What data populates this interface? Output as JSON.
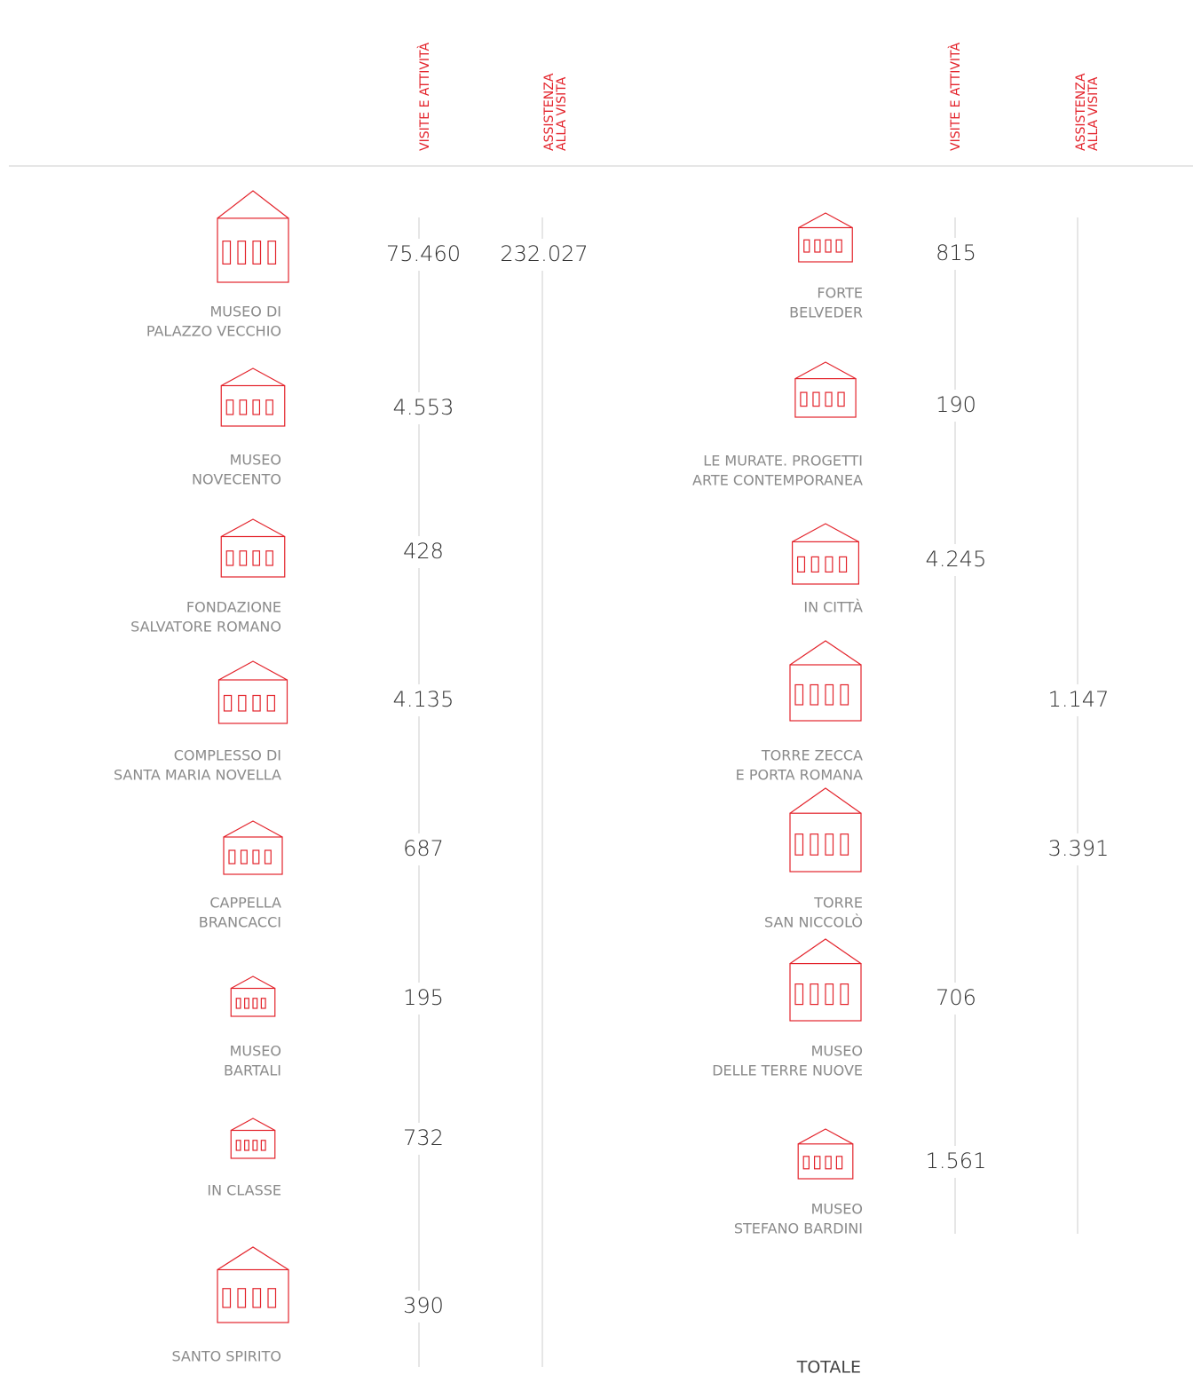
{
  "header": {
    "left_columns": [
      [
        "VISITE E ATTIVITÀ"
      ],
      [
        "ASSISTENZA",
        "ALLA VISITA"
      ]
    ],
    "right_columns": [
      [
        "VISITE E ATTIVITÀ"
      ],
      [
        "ASSISTENZA",
        "ALLA VISITA"
      ]
    ]
  },
  "left_items": [
    {
      "label": [
        "MUSEO DI",
        "PALAZZO VECCHIO"
      ],
      "visite": "75.460",
      "assistenza": "232.027"
    },
    {
      "label": [
        "MUSEO",
        "NOVECENTO"
      ],
      "visite": "4.553"
    },
    {
      "label": [
        "FONDAZIONE",
        "SALVATORE ROMANO"
      ],
      "visite": "428"
    },
    {
      "label": [
        "COMPLESSO DI",
        "SANTA MARIA NOVELLA"
      ],
      "visite": "4.135"
    },
    {
      "label": [
        "CAPPELLA",
        "BRANCACCI"
      ],
      "visite": "687"
    },
    {
      "label": [
        "MUSEO",
        "BARTALI"
      ],
      "visite": "195"
    },
    {
      "label": [
        "IN CLASSE"
      ],
      "visite": "732"
    },
    {
      "label": [
        "SANTO SPIRITO"
      ],
      "visite": "390"
    }
  ],
  "right_items": [
    {
      "label": [
        "FORTE",
        "BELVEDER"
      ],
      "visite": "815"
    },
    {
      "label": [
        "LE MURATE. PROGETTI",
        "ARTE CONTEMPORANEA"
      ],
      "visite": "190"
    },
    {
      "label": [
        "IN CITTÀ"
      ],
      "visite": "4.245"
    },
    {
      "label": [
        "TORRE ZECCA",
        "E PORTA ROMANA"
      ],
      "assistenza": "1.147"
    },
    {
      "label": [
        "TORRE",
        "SAN NICCOLÒ"
      ],
      "assistenza": "3.391"
    },
    {
      "label": [
        "MUSEO",
        "DELLE TERRE NUOVE"
      ],
      "visite": "706"
    },
    {
      "label": [
        "MUSEO",
        "STEFANO BARDINI"
      ],
      "visite": "1.561"
    }
  ],
  "total": {
    "label": "TOTALE"
  }
}
